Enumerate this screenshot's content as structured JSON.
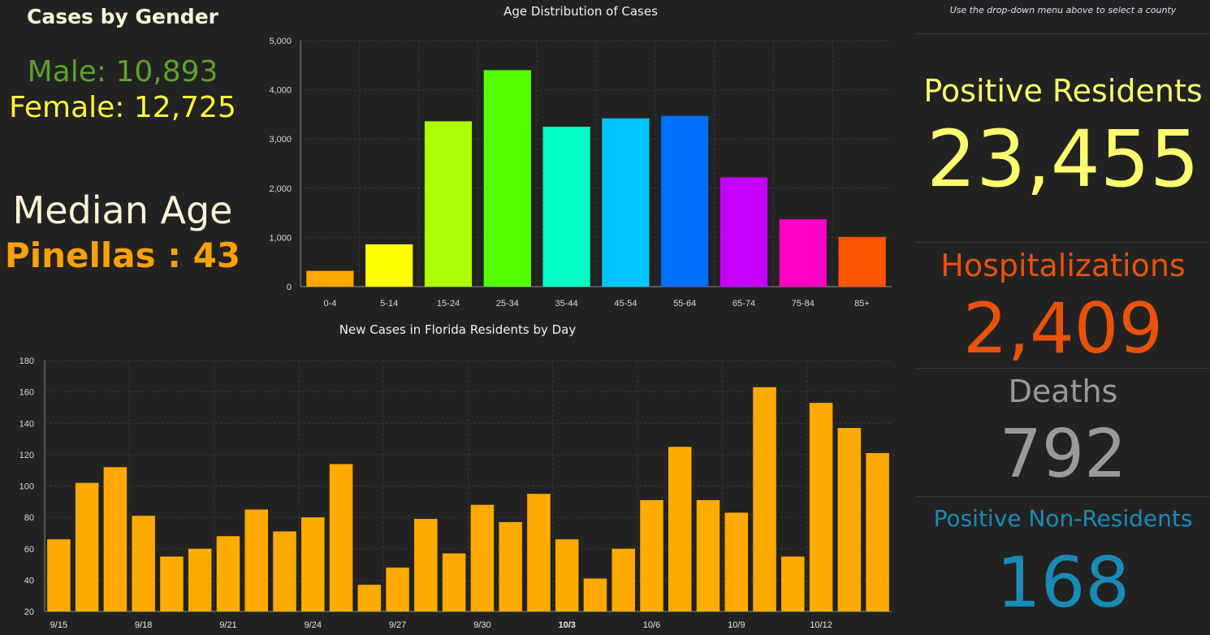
{
  "gender": {
    "title": "Cases by Gender",
    "male": "Male: 10,893",
    "female": "Female: 12,725"
  },
  "median": {
    "label": "Median Age",
    "value": "Pinellas : 43"
  },
  "stats": {
    "hint": "Use the drop-down menu above to select a county",
    "positive_label": "Positive Residents",
    "positive_value": "23,455",
    "hosp_label": "Hospitalizations",
    "hosp_value": "2,409",
    "deaths_label": "Deaths",
    "deaths_value": "792",
    "nonres_label": "Positive Non-Residents",
    "nonres_value": "168",
    "colors": {
      "positive": "#fdfb6e",
      "hosp": "#e8520c",
      "deaths": "#9a9a9a",
      "nonres": "#1a8ab6"
    }
  },
  "chart_data": [
    {
      "type": "bar",
      "title": "Age Distribution of Cases",
      "categories": [
        "0-4",
        "5-14",
        "15-24",
        "25-34",
        "35-44",
        "45-54",
        "55-64",
        "65-74",
        "75-84",
        "85+"
      ],
      "values": [
        320,
        860,
        3360,
        4400,
        3250,
        3420,
        3470,
        2220,
        1370,
        1010
      ],
      "colors": [
        "#ffaa00",
        "#ffff00",
        "#aaff00",
        "#55ff00",
        "#00ffc5",
        "#00c5ff",
        "#0070ff",
        "#c500ff",
        "#ff00c5",
        "#ff5500"
      ],
      "yticks": [
        "0",
        "1,000",
        "2,000",
        "3,000",
        "4,000",
        "5,000"
      ],
      "ylim": [
        0,
        5000
      ],
      "grid": true
    },
    {
      "type": "bar",
      "title": "New Cases in Florida Residents by Day",
      "x": [
        "9/15",
        "9/16",
        "9/17",
        "9/18",
        "9/19",
        "9/20",
        "9/21",
        "9/22",
        "9/23",
        "9/24",
        "9/25",
        "9/26",
        "9/27",
        "9/28",
        "9/29",
        "9/30",
        "10/1",
        "10/2",
        "10/3",
        "10/4",
        "10/5",
        "10/6",
        "10/7",
        "10/8",
        "10/9",
        "10/10",
        "10/11",
        "10/12",
        "10/13",
        "10/14"
      ],
      "xticks": [
        "9/15",
        "9/18",
        "9/21",
        "9/24",
        "9/27",
        "9/30",
        "10/3",
        "10/6",
        "10/9",
        "10/12"
      ],
      "values": [
        66,
        102,
        112,
        81,
        55,
        60,
        68,
        85,
        71,
        80,
        114,
        37,
        48,
        79,
        57,
        88,
        77,
        95,
        66,
        41,
        60,
        91,
        125,
        91,
        83,
        163,
        55,
        153,
        137,
        121
      ],
      "color": "#ffaa00",
      "yticks": [
        "20",
        "40",
        "60",
        "80",
        "100",
        "120",
        "140",
        "160",
        "180"
      ],
      "ylim": [
        20,
        180
      ],
      "grid": true
    }
  ]
}
